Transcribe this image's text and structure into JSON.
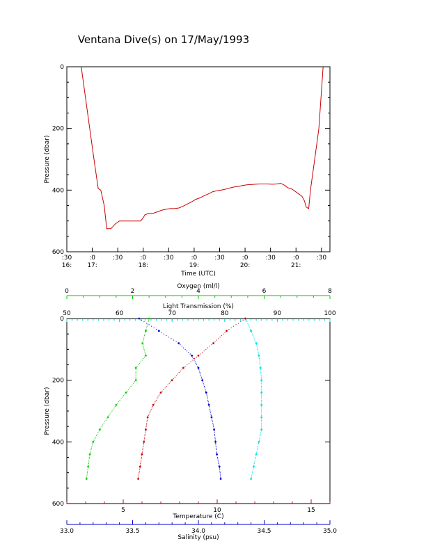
{
  "title": "Ventana Dive(s) on 17/May/1993",
  "colors": {
    "pressure_trace": "#cc0000",
    "oxygen": "#00cc00",
    "light": "#00dddd",
    "temperature": "#cc0000",
    "salinity": "#0000cc",
    "axis": "#000000"
  },
  "chart_data": [
    {
      "type": "line",
      "name": "time-pressure",
      "xlabel": "Time (UTC)",
      "ylabel": "Pressure (dbar)",
      "ylim": [
        600,
        0
      ],
      "xlim": [
        "16:30",
        "21:40"
      ],
      "x_tick_labels": [
        {
          "top": ":30",
          "bottom": "16:"
        },
        {
          "top": ":0",
          "bottom": "17:"
        },
        {
          "top": ":30",
          "bottom": ""
        },
        {
          "top": ":0",
          "bottom": "18:"
        },
        {
          "top": ":30",
          "bottom": ""
        },
        {
          "top": ":0",
          "bottom": "19:"
        },
        {
          "top": ":30",
          "bottom": ""
        },
        {
          "top": ":0",
          "bottom": "20:"
        },
        {
          "top": ":30",
          "bottom": ""
        },
        {
          "top": ":0",
          "bottom": "21:"
        },
        {
          "top": ":30",
          "bottom": ""
        }
      ],
      "y_ticks": [
        0,
        200,
        400,
        600
      ],
      "series": [
        {
          "x": [
            "16:47",
            "16:52",
            "16:57",
            "17:02",
            "17:07",
            "17:10",
            "17:14",
            "17:17",
            "17:22",
            "17:27",
            "17:32",
            "17:37",
            "17:42",
            "17:47",
            "17:52",
            "17:57",
            "18:00",
            "18:02",
            "18:07",
            "18:12",
            "18:17",
            "18:22",
            "18:27",
            "18:32",
            "18:37",
            "18:42",
            "18:47",
            "18:52",
            "18:57",
            "19:02",
            "19:07",
            "19:12",
            "19:17",
            "19:22",
            "19:27",
            "19:32",
            "19:37",
            "19:42",
            "19:47",
            "19:52",
            "19:57",
            "20:02",
            "20:07",
            "20:12",
            "20:17",
            "20:22",
            "20:27",
            "20:32",
            "20:37",
            "20:42",
            "20:47",
            "20:50",
            "20:54",
            "20:57",
            "21:02",
            "21:07",
            "21:10",
            "21:12",
            "21:15",
            "21:17",
            "21:22",
            "21:27",
            "21:32"
          ],
          "y": [
            0,
            100,
            200,
            300,
            395,
            400,
            450,
            525,
            525,
            510,
            500,
            500,
            500,
            500,
            500,
            500,
            490,
            480,
            475,
            475,
            470,
            465,
            462,
            460,
            460,
            458,
            452,
            445,
            438,
            430,
            425,
            418,
            412,
            405,
            402,
            400,
            397,
            393,
            390,
            388,
            385,
            383,
            382,
            381,
            380,
            380,
            380,
            381,
            380,
            378,
            385,
            392,
            395,
            400,
            410,
            420,
            435,
            455,
            460,
            400,
            300,
            200,
            0
          ]
        }
      ]
    },
    {
      "type": "scatter",
      "name": "profiles",
      "ylabel": "Pressure (dbar)",
      "ylim": [
        600,
        0
      ],
      "y_ticks": [
        0,
        200,
        400,
        600
      ],
      "axes": {
        "oxygen": {
          "label": "Oxygen (ml/l)",
          "range": [
            0,
            8
          ],
          "ticks": [
            "0",
            "2",
            "4",
            "6",
            "8"
          ]
        },
        "light": {
          "label": "Light Transmission (%)",
          "range": [
            50,
            100
          ],
          "ticks": [
            "50",
            "60",
            "70",
            "80",
            "90",
            "100"
          ]
        },
        "temperature": {
          "label": "Temperature (C)",
          "range": [
            2,
            16
          ],
          "ticks": [
            "5",
            "10",
            "15"
          ]
        },
        "salinity": {
          "label": "Salinity (psu)",
          "range": [
            33.0,
            35.0
          ],
          "ticks": [
            "33.0",
            "33.5",
            "34.0",
            "34.5",
            "35.0"
          ]
        }
      },
      "series": [
        {
          "name": "Oxygen (ml/l)",
          "axis": "oxygen",
          "x": [
            2.5,
            2.4,
            2.3,
            2.4,
            2.1,
            2.1,
            1.8,
            1.5,
            1.25,
            1.0,
            0.8,
            0.7,
            0.65,
            0.6
          ],
          "y": [
            0,
            40,
            80,
            120,
            160,
            200,
            240,
            280,
            320,
            360,
            400,
            440,
            480,
            520
          ]
        },
        {
          "name": "Light Transmission (%)",
          "axis": "light",
          "x": [
            84,
            85,
            86,
            86.5,
            86.8,
            87,
            87,
            87,
            87,
            87,
            86.5,
            86,
            85.5,
            85
          ],
          "y": [
            0,
            40,
            80,
            120,
            160,
            200,
            240,
            280,
            320,
            360,
            400,
            440,
            480,
            520
          ]
        },
        {
          "name": "Temperature (C)",
          "axis": "temperature",
          "x": [
            11.5,
            10.5,
            9.8,
            9.0,
            8.2,
            7.6,
            7.0,
            6.6,
            6.3,
            6.2,
            6.1,
            6.0,
            5.9,
            5.8
          ],
          "y": [
            0,
            40,
            80,
            120,
            160,
            200,
            240,
            280,
            320,
            360,
            400,
            440,
            480,
            520
          ]
        },
        {
          "name": "Salinity (psu)",
          "axis": "salinity",
          "x": [
            33.55,
            33.7,
            33.85,
            33.95,
            34.0,
            34.03,
            34.06,
            34.08,
            34.1,
            34.12,
            34.13,
            34.14,
            34.16,
            34.17
          ],
          "y": [
            0,
            40,
            80,
            120,
            160,
            200,
            240,
            280,
            320,
            360,
            400,
            440,
            480,
            520
          ]
        }
      ]
    }
  ]
}
